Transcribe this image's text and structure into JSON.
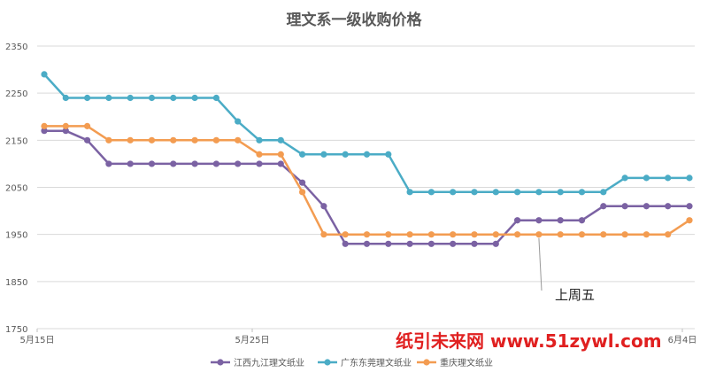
{
  "chart_data": {
    "type": "line",
    "title": "理文系一级收购价格",
    "xlabel": "",
    "ylabel": "",
    "ylim": [
      1750,
      2350
    ],
    "yticks": [
      1750,
      1850,
      1950,
      2050,
      2150,
      2250,
      2350
    ],
    "x_tick_labels": [
      "5月15日",
      "5月25日",
      "6月4日"
    ],
    "grid": true,
    "legend_position": "bottom",
    "series": [
      {
        "name": "江西九江理文纸业",
        "color": "#7b62a3",
        "values": [
          2170,
          2170,
          2150,
          2100,
          2100,
          2100,
          2100,
          2100,
          2100,
          2100,
          2100,
          2100,
          2060,
          2010,
          1930,
          1930,
          1930,
          1930,
          1930,
          1930,
          1930,
          1930,
          1980,
          1980,
          1980,
          1980,
          2010,
          2010,
          2010,
          2010,
          2010
        ]
      },
      {
        "name": "广东东莞理文纸业",
        "color": "#4bacc6",
        "values": [
          2290,
          2240,
          2240,
          2240,
          2240,
          2240,
          2240,
          2240,
          2240,
          2190,
          2150,
          2150,
          2120,
          2120,
          2120,
          2120,
          2120,
          2040,
          2040,
          2040,
          2040,
          2040,
          2040,
          2040,
          2040,
          2040,
          2040,
          2070,
          2070,
          2070,
          2070
        ]
      },
      {
        "name": "重庆理文纸业",
        "color": "#f39c51",
        "values": [
          2180,
          2180,
          2180,
          2150,
          2150,
          2150,
          2150,
          2150,
          2150,
          2150,
          2120,
          2120,
          2040,
          1950,
          1950,
          1950,
          1950,
          1950,
          1950,
          1950,
          1950,
          1950,
          1950,
          1950,
          1950,
          1950,
          1950,
          1950,
          1950,
          1950,
          1980
        ]
      }
    ],
    "annotation": {
      "text": "上周五",
      "point_index": 23,
      "value": 1950
    }
  },
  "watermark": "纸引未来网  www.51zywl.com"
}
